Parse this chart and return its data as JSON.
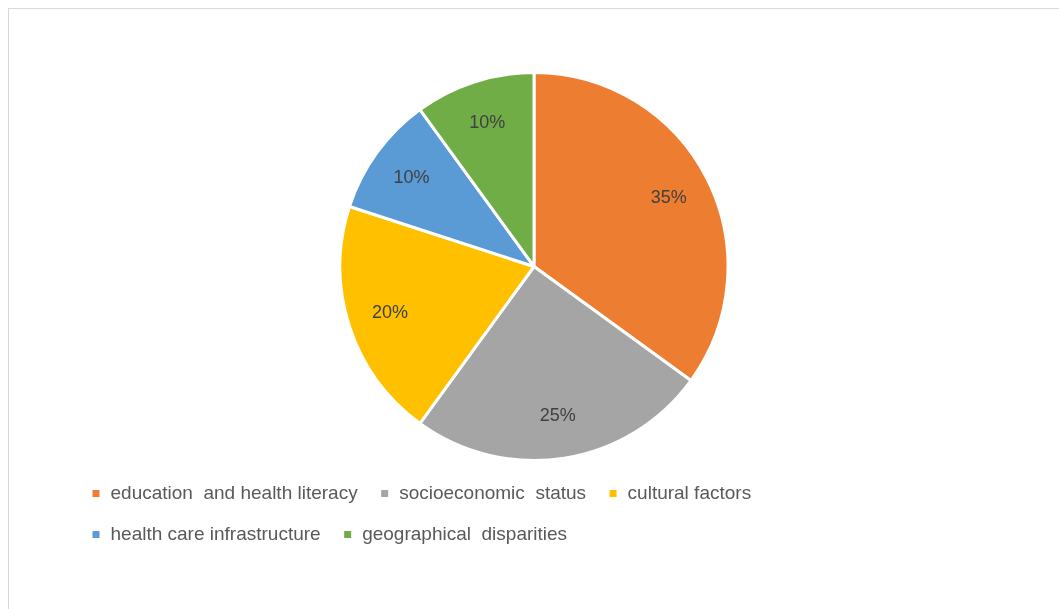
{
  "chart_data": {
    "type": "pie",
    "categories": [
      "education  and health literacy",
      "socioeconomic  status",
      "cultural factors",
      "health care infrastructure",
      "geographical  disparities"
    ],
    "values": [
      35,
      25,
      20,
      10,
      10
    ],
    "colors": [
      "#ed7d31",
      "#a5a5a5",
      "#ffc000",
      "#5b9bd5",
      "#70ad47"
    ],
    "value_labels": [
      "35%",
      "25%",
      "20%",
      "10%",
      "10%"
    ],
    "legend": "bottom"
  }
}
